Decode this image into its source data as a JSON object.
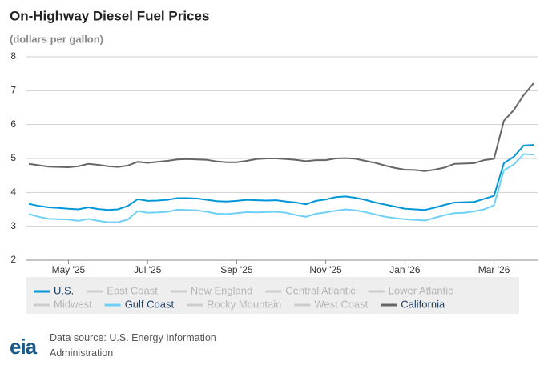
{
  "chart_data": {
    "type": "line",
    "title": "On-Highway Diesel Fuel Prices",
    "subtitle": "(dollars per gallon)",
    "categories": [
      null,
      null,
      null,
      null,
      "May '25",
      null,
      null,
      null,
      null,
      null,
      null,
      null,
      "Jul '25",
      null,
      null,
      null,
      null,
      null,
      null,
      null,
      null,
      "Sep '25",
      null,
      null,
      null,
      null,
      null,
      null,
      null,
      null,
      "Nov '25",
      null,
      null,
      null,
      null,
      null,
      null,
      null,
      "Jan '26",
      null,
      null,
      null,
      null,
      null,
      null,
      null,
      null,
      "Mar '26",
      null,
      null,
      null,
      null
    ],
    "ylim": [
      2,
      8
    ],
    "yticks": [
      2,
      3,
      4,
      5,
      6,
      7,
      8
    ],
    "grid": true,
    "series": [
      {
        "name": "U.S.",
        "color": "#0096d7",
        "values": [
          3.66,
          3.6,
          3.56,
          3.54,
          3.52,
          3.5,
          3.56,
          3.51,
          3.48,
          3.5,
          3.6,
          3.8,
          3.75,
          3.76,
          3.78,
          3.83,
          3.83,
          3.82,
          3.78,
          3.74,
          3.73,
          3.75,
          3.78,
          3.77,
          3.76,
          3.77,
          3.73,
          3.7,
          3.65,
          3.75,
          3.79,
          3.86,
          3.88,
          3.84,
          3.78,
          3.7,
          3.64,
          3.58,
          3.52,
          3.5,
          3.48,
          3.55,
          3.63,
          3.7,
          3.71,
          3.72,
          3.81,
          3.9,
          4.86,
          5.05,
          5.38,
          5.4
        ]
      },
      {
        "name": "East Coast",
        "color": "#cccccc",
        "hidden": true
      },
      {
        "name": "New England",
        "color": "#cccccc",
        "hidden": true
      },
      {
        "name": "Central Atlantic",
        "color": "#cccccc",
        "hidden": true
      },
      {
        "name": "Lower Atlantic",
        "color": "#cccccc",
        "hidden": true
      },
      {
        "name": "Midwest",
        "color": "#cccccc",
        "hidden": true
      },
      {
        "name": "Gulf Coast",
        "color": "#6fd0f6",
        "values": [
          3.36,
          3.28,
          3.22,
          3.21,
          3.2,
          3.16,
          3.22,
          3.16,
          3.12,
          3.12,
          3.2,
          3.45,
          3.4,
          3.41,
          3.43,
          3.49,
          3.48,
          3.47,
          3.43,
          3.37,
          3.36,
          3.39,
          3.42,
          3.41,
          3.42,
          3.43,
          3.4,
          3.33,
          3.28,
          3.37,
          3.41,
          3.46,
          3.5,
          3.47,
          3.42,
          3.35,
          3.28,
          3.24,
          3.21,
          3.19,
          3.17,
          3.25,
          3.33,
          3.39,
          3.4,
          3.44,
          3.5,
          3.62,
          4.65,
          4.82,
          5.13,
          5.11
        ]
      },
      {
        "name": "Rocky Mountain",
        "color": "#cccccc",
        "hidden": true
      },
      {
        "name": "West Coast",
        "color": "#cccccc",
        "hidden": true
      },
      {
        "name": "California",
        "color": "#666666",
        "values": [
          4.84,
          4.8,
          4.76,
          4.75,
          4.74,
          4.77,
          4.84,
          4.81,
          4.77,
          4.75,
          4.79,
          4.9,
          4.87,
          4.9,
          4.93,
          4.97,
          4.98,
          4.97,
          4.96,
          4.91,
          4.89,
          4.89,
          4.93,
          4.98,
          5.0,
          5.0,
          4.98,
          4.96,
          4.92,
          4.95,
          4.95,
          5.0,
          5.01,
          4.99,
          4.93,
          4.87,
          4.79,
          4.72,
          4.67,
          4.66,
          4.63,
          4.67,
          4.73,
          4.84,
          4.85,
          4.86,
          4.95,
          4.99,
          6.11,
          6.43,
          6.87,
          7.22
        ]
      }
    ]
  },
  "logo": "eia",
  "source": "Data source: U.S. Energy Information Administration"
}
